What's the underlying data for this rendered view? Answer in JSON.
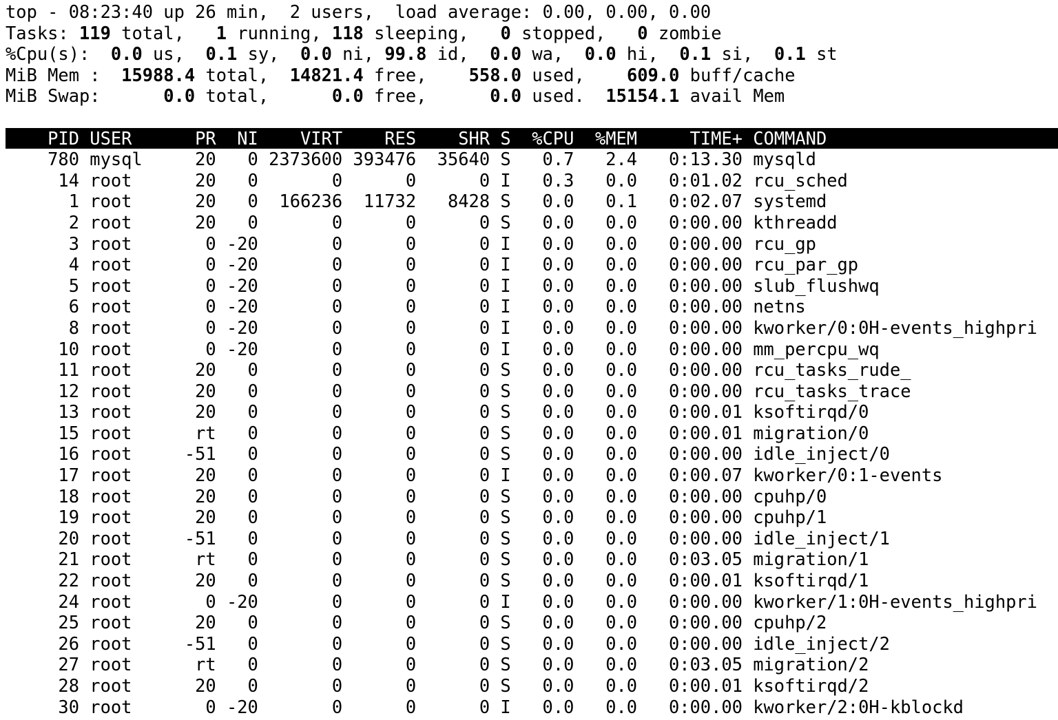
{
  "colors": {
    "background": "#ffffff",
    "text": "#000000",
    "header_bar": "#000000",
    "header_text": "#ffffff"
  },
  "summary": [
    [
      {
        "t": "top - 08:23:40 up 26 min,  2 users,  load average: 0.00, 0.00, 0.00",
        "b": false
      }
    ],
    [
      {
        "t": "Tasks: ",
        "b": false
      },
      {
        "t": "119",
        "b": true
      },
      {
        "t": " total,   ",
        "b": false
      },
      {
        "t": "1",
        "b": true
      },
      {
        "t": " running, ",
        "b": false
      },
      {
        "t": "118",
        "b": true
      },
      {
        "t": " sleeping,   ",
        "b": false
      },
      {
        "t": "0",
        "b": true
      },
      {
        "t": " stopped,   ",
        "b": false
      },
      {
        "t": "0",
        "b": true
      },
      {
        "t": " zombie",
        "b": false
      }
    ],
    [
      {
        "t": "%Cpu(s):  ",
        "b": false
      },
      {
        "t": "0.0",
        "b": true
      },
      {
        "t": " us,  ",
        "b": false
      },
      {
        "t": "0.1",
        "b": true
      },
      {
        "t": " sy,  ",
        "b": false
      },
      {
        "t": "0.0",
        "b": true
      },
      {
        "t": " ni, ",
        "b": false
      },
      {
        "t": "99.8",
        "b": true
      },
      {
        "t": " id,  ",
        "b": false
      },
      {
        "t": "0.0",
        "b": true
      },
      {
        "t": " wa,  ",
        "b": false
      },
      {
        "t": "0.0",
        "b": true
      },
      {
        "t": " hi,  ",
        "b": false
      },
      {
        "t": "0.1",
        "b": true
      },
      {
        "t": " si,  ",
        "b": false
      },
      {
        "t": "0.1",
        "b": true
      },
      {
        "t": " st",
        "b": false
      }
    ],
    [
      {
        "t": "MiB Mem :  ",
        "b": false
      },
      {
        "t": "15988.4",
        "b": true
      },
      {
        "t": " total,  ",
        "b": false
      },
      {
        "t": "14821.4",
        "b": true
      },
      {
        "t": " free,    ",
        "b": false
      },
      {
        "t": "558.0",
        "b": true
      },
      {
        "t": " used,    ",
        "b": false
      },
      {
        "t": "609.0",
        "b": true
      },
      {
        "t": " buff/cache",
        "b": false
      }
    ],
    [
      {
        "t": "MiB Swap:      ",
        "b": false
      },
      {
        "t": "0.0",
        "b": true
      },
      {
        "t": " total,      ",
        "b": false
      },
      {
        "t": "0.0",
        "b": true
      },
      {
        "t": " free,      ",
        "b": false
      },
      {
        "t": "0.0",
        "b": true
      },
      {
        "t": " used.  ",
        "b": false
      },
      {
        "t": "15154.1",
        "b": true
      },
      {
        "t": " avail Mem",
        "b": false
      }
    ]
  ],
  "table": {
    "columns": [
      "PID",
      "USER",
      "PR",
      "NI",
      "VIRT",
      "RES",
      "SHR",
      "S",
      "%CPU",
      "%MEM",
      "TIME+",
      "COMMAND"
    ],
    "rows": [
      [
        "780",
        "mysql",
        "20",
        "0",
        "2373600",
        "393476",
        "35640",
        "S",
        "0.7",
        "2.4",
        "0:13.30",
        "mysqld"
      ],
      [
        "14",
        "root",
        "20",
        "0",
        "0",
        "0",
        "0",
        "I",
        "0.3",
        "0.0",
        "0:01.02",
        "rcu_sched"
      ],
      [
        "1",
        "root",
        "20",
        "0",
        "166236",
        "11732",
        "8428",
        "S",
        "0.0",
        "0.1",
        "0:02.07",
        "systemd"
      ],
      [
        "2",
        "root",
        "20",
        "0",
        "0",
        "0",
        "0",
        "S",
        "0.0",
        "0.0",
        "0:00.00",
        "kthreadd"
      ],
      [
        "3",
        "root",
        "0",
        "-20",
        "0",
        "0",
        "0",
        "I",
        "0.0",
        "0.0",
        "0:00.00",
        "rcu_gp"
      ],
      [
        "4",
        "root",
        "0",
        "-20",
        "0",
        "0",
        "0",
        "I",
        "0.0",
        "0.0",
        "0:00.00",
        "rcu_par_gp"
      ],
      [
        "5",
        "root",
        "0",
        "-20",
        "0",
        "0",
        "0",
        "I",
        "0.0",
        "0.0",
        "0:00.00",
        "slub_flushwq"
      ],
      [
        "6",
        "root",
        "0",
        "-20",
        "0",
        "0",
        "0",
        "I",
        "0.0",
        "0.0",
        "0:00.00",
        "netns"
      ],
      [
        "8",
        "root",
        "0",
        "-20",
        "0",
        "0",
        "0",
        "I",
        "0.0",
        "0.0",
        "0:00.00",
        "kworker/0:0H-events_highpri"
      ],
      [
        "10",
        "root",
        "0",
        "-20",
        "0",
        "0",
        "0",
        "I",
        "0.0",
        "0.0",
        "0:00.00",
        "mm_percpu_wq"
      ],
      [
        "11",
        "root",
        "20",
        "0",
        "0",
        "0",
        "0",
        "S",
        "0.0",
        "0.0",
        "0:00.00",
        "rcu_tasks_rude_"
      ],
      [
        "12",
        "root",
        "20",
        "0",
        "0",
        "0",
        "0",
        "S",
        "0.0",
        "0.0",
        "0:00.00",
        "rcu_tasks_trace"
      ],
      [
        "13",
        "root",
        "20",
        "0",
        "0",
        "0",
        "0",
        "S",
        "0.0",
        "0.0",
        "0:00.01",
        "ksoftirqd/0"
      ],
      [
        "15",
        "root",
        "rt",
        "0",
        "0",
        "0",
        "0",
        "S",
        "0.0",
        "0.0",
        "0:00.01",
        "migration/0"
      ],
      [
        "16",
        "root",
        "-51",
        "0",
        "0",
        "0",
        "0",
        "S",
        "0.0",
        "0.0",
        "0:00.00",
        "idle_inject/0"
      ],
      [
        "17",
        "root",
        "20",
        "0",
        "0",
        "0",
        "0",
        "I",
        "0.0",
        "0.0",
        "0:00.07",
        "kworker/0:1-events"
      ],
      [
        "18",
        "root",
        "20",
        "0",
        "0",
        "0",
        "0",
        "S",
        "0.0",
        "0.0",
        "0:00.00",
        "cpuhp/0"
      ],
      [
        "19",
        "root",
        "20",
        "0",
        "0",
        "0",
        "0",
        "S",
        "0.0",
        "0.0",
        "0:00.00",
        "cpuhp/1"
      ],
      [
        "20",
        "root",
        "-51",
        "0",
        "0",
        "0",
        "0",
        "S",
        "0.0",
        "0.0",
        "0:00.00",
        "idle_inject/1"
      ],
      [
        "21",
        "root",
        "rt",
        "0",
        "0",
        "0",
        "0",
        "S",
        "0.0",
        "0.0",
        "0:03.05",
        "migration/1"
      ],
      [
        "22",
        "root",
        "20",
        "0",
        "0",
        "0",
        "0",
        "S",
        "0.0",
        "0.0",
        "0:00.01",
        "ksoftirqd/1"
      ],
      [
        "24",
        "root",
        "0",
        "-20",
        "0",
        "0",
        "0",
        "I",
        "0.0",
        "0.0",
        "0:00.00",
        "kworker/1:0H-events_highpri"
      ],
      [
        "25",
        "root",
        "20",
        "0",
        "0",
        "0",
        "0",
        "S",
        "0.0",
        "0.0",
        "0:00.00",
        "cpuhp/2"
      ],
      [
        "26",
        "root",
        "-51",
        "0",
        "0",
        "0",
        "0",
        "S",
        "0.0",
        "0.0",
        "0:00.00",
        "idle_inject/2"
      ],
      [
        "27",
        "root",
        "rt",
        "0",
        "0",
        "0",
        "0",
        "S",
        "0.0",
        "0.0",
        "0:03.05",
        "migration/2"
      ],
      [
        "28",
        "root",
        "20",
        "0",
        "0",
        "0",
        "0",
        "S",
        "0.0",
        "0.0",
        "0:00.01",
        "ksoftirqd/2"
      ],
      [
        "30",
        "root",
        "0",
        "-20",
        "0",
        "0",
        "0",
        "I",
        "0.0",
        "0.0",
        "0:00.00",
        "kworker/2:0H-kblockd"
      ]
    ]
  }
}
